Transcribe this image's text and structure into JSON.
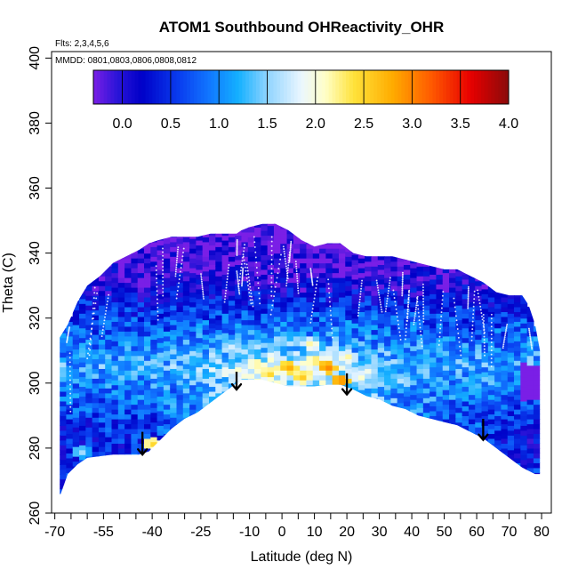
{
  "chart_data": {
    "type": "heatmap",
    "title": "ATOM1 Southbound OHReactivity_OHR",
    "annotations": {
      "flights": "Flts: 2,3,4,5,6",
      "dates": "MMDD: 0801,0803,0806,0808,0812"
    },
    "xlabel": "Latitude (deg N)",
    "ylabel": "Theta (C)",
    "xlim": [
      -71,
      83
    ],
    "ylim": [
      260,
      402
    ],
    "x_ticks": [
      -70,
      -55,
      -40,
      -25,
      -10,
      0,
      10,
      20,
      30,
      40,
      50,
      60,
      70,
      80
    ],
    "x_minor_ticks": [
      -65,
      -60,
      -50,
      -45,
      -35,
      -30,
      -20,
      -15,
      -5,
      5,
      15,
      25,
      35,
      45,
      55,
      65,
      75
    ],
    "y_ticks": [
      260,
      280,
      300,
      320,
      340,
      360,
      380,
      400
    ],
    "colorbar": {
      "range": [
        -0.3,
        4.0
      ],
      "ticks": [
        0.0,
        0.5,
        1.0,
        1.5,
        2.0,
        2.5,
        3.0,
        3.5,
        4.0
      ],
      "tick_labels": [
        "0.0",
        "0.5",
        "1.0",
        "1.5",
        "2.0",
        "2.5",
        "3.0",
        "3.5",
        "4.0"
      ],
      "stops": [
        {
          "v": -0.3,
          "color": "#7a1fe6"
        },
        {
          "v": -0.05,
          "color": "#2a14d8"
        },
        {
          "v": 0.2,
          "color": "#0000c8"
        },
        {
          "v": 0.6,
          "color": "#0a3ff0"
        },
        {
          "v": 0.9,
          "color": "#1177ff"
        },
        {
          "v": 1.2,
          "color": "#14b0ff"
        },
        {
          "v": 1.5,
          "color": "#8fd4ff"
        },
        {
          "v": 1.85,
          "color": "#eaf6ff"
        },
        {
          "v": 2.1,
          "color": "#ffffc8"
        },
        {
          "v": 2.4,
          "color": "#ffe23a"
        },
        {
          "v": 2.8,
          "color": "#ffab00"
        },
        {
          "v": 3.2,
          "color": "#ff5a00"
        },
        {
          "v": 3.6,
          "color": "#e80000"
        },
        {
          "v": 4.0,
          "color": "#8a0a0a"
        }
      ]
    },
    "coverage": {
      "lat": [
        -68.5,
        -66,
        -63,
        -60,
        -56,
        -52,
        -48,
        -44,
        -41,
        -38,
        -34,
        -30,
        -26,
        -22,
        -18,
        -14,
        -12.5,
        -10,
        -6,
        -2,
        2,
        6,
        10,
        14,
        18,
        22,
        26,
        30,
        34,
        38,
        42,
        46,
        50,
        54,
        58,
        62,
        66,
        70,
        74,
        76,
        78,
        79.5
      ],
      "theta_bottom": [
        265,
        272,
        275,
        277,
        277.5,
        278,
        278,
        278,
        279,
        282,
        286,
        289,
        291,
        294,
        297,
        300,
        301,
        301,
        301,
        300,
        299,
        299,
        299,
        299.5,
        299.5,
        298,
        296,
        295,
        293,
        292,
        290,
        289,
        288,
        287,
        285,
        283,
        280,
        277,
        274,
        273,
        272,
        272
      ],
      "theta_top": [
        314,
        318,
        325,
        330,
        333,
        337,
        339,
        341,
        343,
        344,
        345,
        345,
        345,
        346,
        346,
        346,
        347,
        348,
        349,
        349,
        347,
        344,
        342,
        343,
        343,
        340,
        339,
        339,
        339,
        338,
        337,
        336,
        335,
        335,
        333,
        331,
        328,
        327,
        327,
        324,
        318,
        310
      ]
    },
    "hotspots": [
      {
        "lat": -40,
        "theta": 281.5,
        "value": 2.6
      },
      {
        "lat": -62,
        "theta": 279,
        "value": 1.7
      },
      {
        "lat": -13,
        "theta": 304,
        "value": 2.2
      },
      {
        "lat": -8,
        "theta": 306,
        "value": 2.4
      },
      {
        "lat": -4,
        "theta": 303,
        "value": 2.6
      },
      {
        "lat": 2,
        "theta": 305,
        "value": 2.9
      },
      {
        "lat": 6,
        "theta": 302,
        "value": 2.7
      },
      {
        "lat": 10,
        "theta": 307,
        "value": 2.5
      },
      {
        "lat": 14,
        "theta": 305,
        "value": 3.1
      },
      {
        "lat": 18,
        "theta": 301,
        "value": 3.1
      },
      {
        "lat": 20,
        "theta": 308,
        "value": 2.3
      },
      {
        "lat": 24,
        "theta": 302,
        "value": 2.2
      },
      {
        "lat": 9,
        "theta": 312,
        "value": 2.3
      },
      {
        "lat": -16,
        "theta": 311,
        "value": 1.9
      }
    ],
    "arrows": [
      {
        "lat": -43,
        "theta_top": 285,
        "theta_tip": 278
      },
      {
        "lat": -14,
        "theta_top": 303.5,
        "theta_tip": 298
      },
      {
        "lat": 20,
        "theta_top": 303,
        "theta_tip": 296.5
      },
      {
        "lat": 62,
        "theta_top": 289,
        "theta_tip": 282.5
      }
    ]
  }
}
